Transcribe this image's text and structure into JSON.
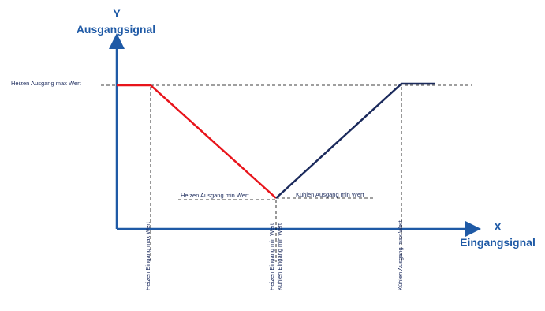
{
  "diagram": {
    "y_axis": {
      "letter": "Y",
      "title": "Ausgangsignal"
    },
    "x_axis": {
      "letter": "X",
      "title": "Eingangsignal"
    },
    "labels": {
      "heizen_ausgang_max": "Heizen Ausgang max Wert",
      "heizen_ausgang_min": "Heizen Ausgang min Wert",
      "kuehlen_ausgang_min": "Kühlen Ausgang min Wert",
      "heizen_eingang_max": "Heizen Eingang max Wert",
      "heizen_eingang_min": "Heizen Eingang min Wert",
      "kuehlen_eingang_min": "Kühlen Eingang min Wert",
      "kuehlen_ausgang_max": "Kühlen Ausgang max Wert"
    },
    "colors": {
      "heating_line": "#e8141b",
      "cooling_line": "#1b2a5c",
      "axis": "#1f5aa6",
      "title_text": "#1f5aa6",
      "label_text": "#1b2a5c"
    }
  }
}
